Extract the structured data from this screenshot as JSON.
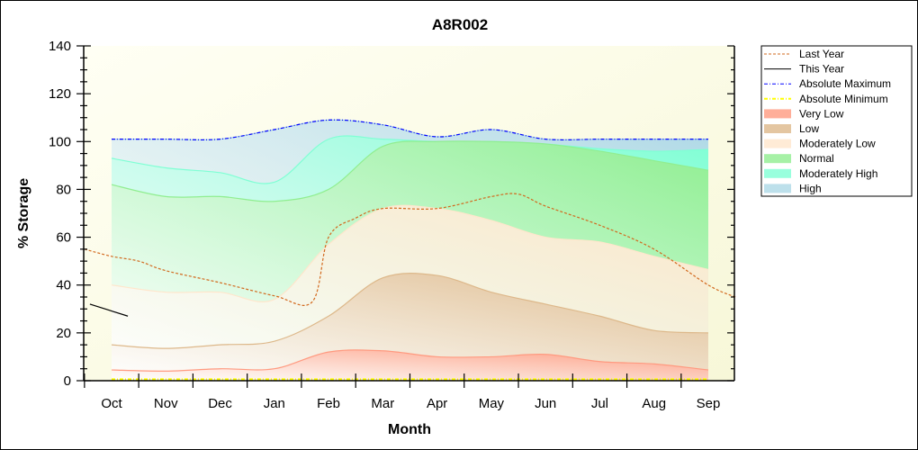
{
  "chart_data": {
    "type": "area",
    "title": "A8R002",
    "xlabel": "Month",
    "ylabel": "% Storage",
    "ylim": [
      0,
      140
    ],
    "yticks": [
      0,
      20,
      40,
      60,
      80,
      100,
      120,
      140
    ],
    "categories": [
      "Oct",
      "Nov",
      "Dec",
      "Jan",
      "Feb",
      "Mar",
      "Apr",
      "May",
      "Jun",
      "Jul",
      "Aug",
      "Sep"
    ],
    "legend_position": "right",
    "bands": [
      {
        "name": "Very Low",
        "color": "#ff9a80",
        "upper": [
          4.5,
          4,
          5,
          5,
          12,
          12.5,
          10,
          10,
          11,
          8,
          7,
          4.5
        ]
      },
      {
        "name": "Low",
        "color": "#ddb88a",
        "upper": [
          15,
          13.5,
          15,
          16.5,
          27,
          43,
          44,
          37,
          32,
          27,
          21,
          20
        ]
      },
      {
        "name": "Moderately Low",
        "color": "#ffe6cc",
        "upper": [
          40,
          37,
          37,
          34,
          57,
          72,
          72,
          67,
          60,
          58,
          52,
          46.5
        ]
      },
      {
        "name": "Normal",
        "color": "#90ee90",
        "upper": [
          82,
          77,
          77,
          75,
          80,
          98,
          100,
          100,
          99,
          96,
          92,
          88
        ]
      },
      {
        "name": "Moderately High",
        "color": "#7fffd4",
        "upper": [
          93,
          89,
          87,
          83,
          101,
          101,
          100,
          100,
          99,
          97,
          96,
          96.7
        ]
      },
      {
        "name": "High",
        "color": "#add8e6",
        "upper": [
          101,
          101,
          101,
          105,
          109,
          107,
          102,
          105,
          101,
          101,
          101,
          101
        ]
      }
    ],
    "lines": [
      {
        "name": "Last Year",
        "color": "#d2691e",
        "style": "dashed",
        "x": [
          -0.5,
          0,
          0.5,
          1,
          2,
          3,
          3.7,
          4,
          4.5,
          5,
          6,
          7,
          7.5,
          8,
          9,
          10,
          11,
          11.5
        ],
        "y": [
          55,
          52,
          50,
          46,
          41,
          35.5,
          33,
          60,
          68,
          72,
          72,
          77,
          78,
          73,
          65,
          55,
          40,
          35
        ]
      },
      {
        "name": "This Year",
        "color": "#000000",
        "style": "solid",
        "x": [
          -0.4,
          0.3
        ],
        "y": [
          32,
          27
        ]
      },
      {
        "name": "Absolute Maximum",
        "color": "#0000ff",
        "style": "dashdot",
        "x": [
          0,
          1,
          2,
          3,
          4,
          5,
          6,
          7,
          8,
          9,
          10,
          11
        ],
        "y": [
          101,
          101,
          101,
          105,
          109,
          107,
          102,
          105,
          101,
          101,
          101,
          101
        ]
      },
      {
        "name": "Absolute Minimum",
        "color": "#ffff00",
        "style": "dashdot",
        "x": [
          0,
          11
        ],
        "y": [
          0.5,
          0.5
        ]
      }
    ],
    "legend": [
      "Last Year",
      "This Year",
      "Absolute Maximum",
      "Absolute Minimum",
      "Very Low",
      "Low",
      "Moderately Low",
      "Normal",
      "Moderately High",
      "High"
    ]
  }
}
